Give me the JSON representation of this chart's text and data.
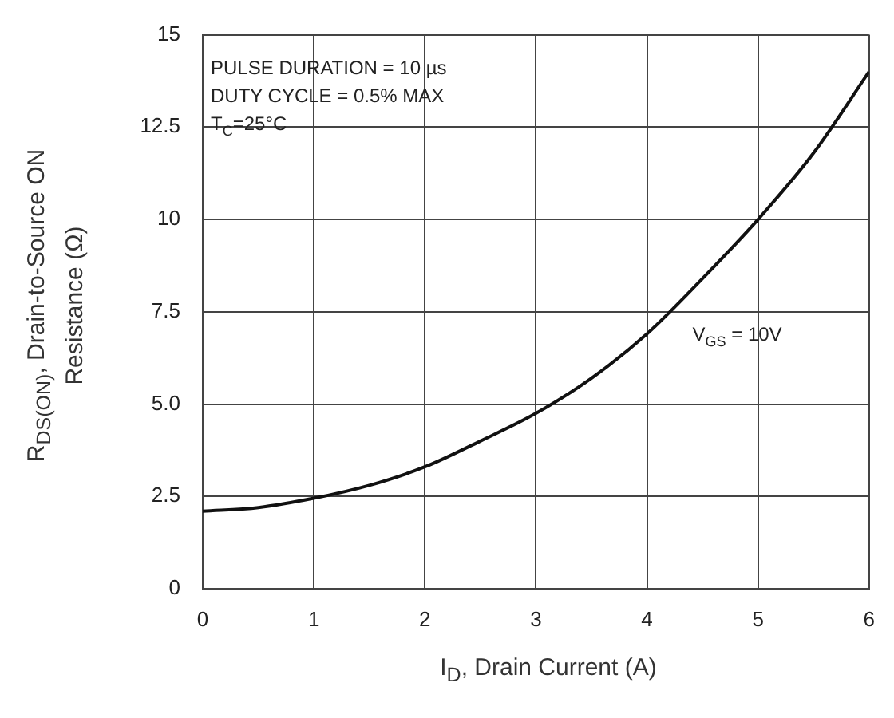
{
  "chart_data": {
    "type": "line",
    "xlabel": "I$_{D}$, Drain Current (A)",
    "ylabel": "R$_{DS(ON)}$, Drain-to-Source ON Resistance (Ω)",
    "x": [
      0,
      0.5,
      1,
      1.5,
      2,
      2.5,
      3,
      3.5,
      4,
      4.5,
      5,
      5.5,
      6
    ],
    "series": [
      {
        "color": "#111111",
        "values": [
          2.1,
          2.2,
          2.45,
          2.8,
          3.3,
          4.0,
          4.75,
          5.7,
          6.9,
          8.4,
          10.0,
          11.8,
          14.0
        ]
      }
    ],
    "xlim": [
      0,
      6
    ],
    "xticks": [
      0,
      1,
      2,
      3,
      4,
      5,
      6
    ],
    "ylim": [
      0,
      15
    ],
    "yticks": [
      0,
      2.5,
      {
        "value": 5,
        "label": "5.0"
      },
      7.5,
      10,
      12.5,
      15
    ],
    "grid": true,
    "legend": false,
    "marker": "none",
    "line_style": "solid",
    "annotations": [
      "PULSE DURATION = 10 µs",
      "DUTY CYCLE = 0.5% MAX",
      "T$_{C}$=25°C",
      "V$_{GS}$ = 10V"
    ]
  }
}
